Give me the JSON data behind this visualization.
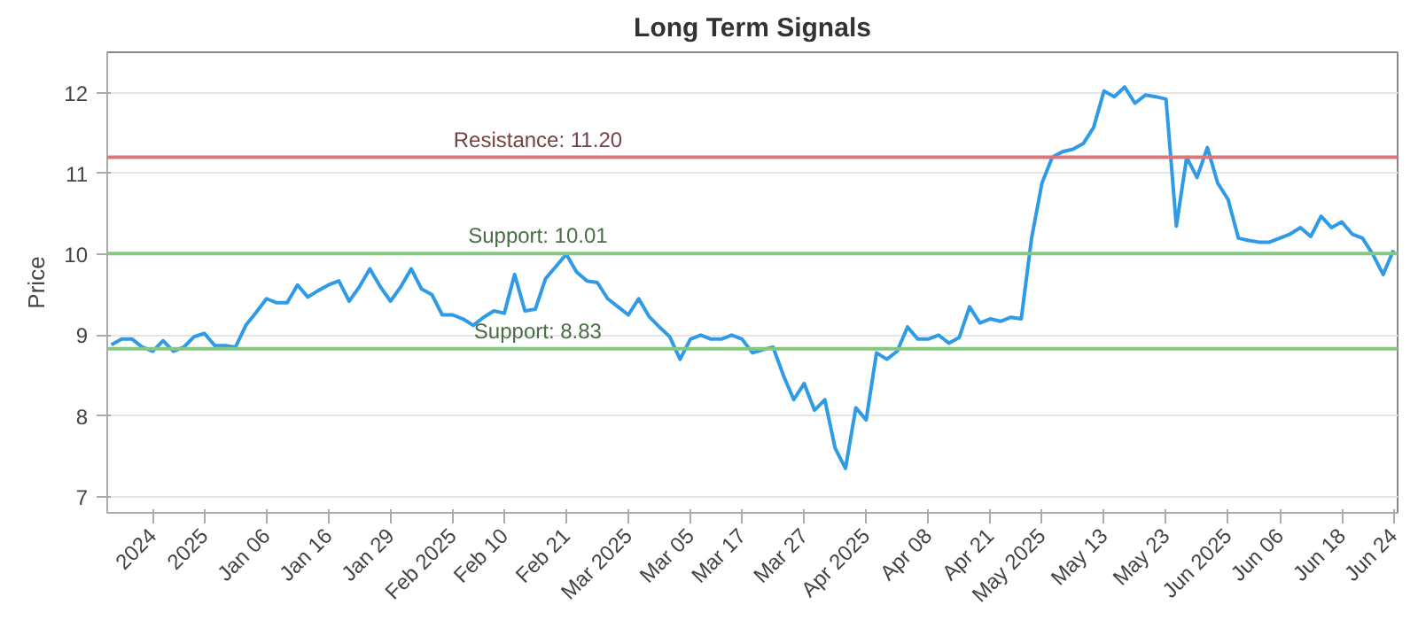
{
  "chart_data": {
    "type": "line",
    "title": "Long Term Signals",
    "ylabel": "Price",
    "categories": [
      null,
      null,
      null,
      null,
      "2024",
      null,
      null,
      null,
      null,
      "2025",
      null,
      null,
      null,
      null,
      null,
      "Jan 06",
      null,
      null,
      null,
      null,
      null,
      "Jan 16",
      null,
      null,
      null,
      null,
      null,
      "Jan 29",
      null,
      null,
      null,
      null,
      null,
      "Feb 2025",
      null,
      null,
      null,
      null,
      "Feb 10",
      null,
      null,
      null,
      null,
      null,
      "Feb 21",
      null,
      null,
      null,
      null,
      null,
      "Mar 2025",
      null,
      null,
      null,
      null,
      null,
      "Mar 05",
      null,
      null,
      null,
      null,
      "Mar 17",
      null,
      null,
      null,
      null,
      null,
      "Mar 27",
      null,
      null,
      null,
      null,
      null,
      "Apr 2025",
      null,
      null,
      null,
      null,
      null,
      "Apr 08",
      null,
      null,
      null,
      null,
      null,
      "Apr 21",
      null,
      null,
      null,
      null,
      "May 2025",
      null,
      null,
      null,
      null,
      null,
      "May 13",
      null,
      null,
      null,
      null,
      null,
      "May 23",
      null,
      null,
      null,
      null,
      null,
      "Jun 2025",
      null,
      null,
      null,
      null,
      "Jun 06",
      null,
      null,
      null,
      null,
      null,
      "Jun 18",
      null,
      null,
      null,
      null,
      "Jun 24"
    ],
    "series": [
      {
        "color": "#2f9ae6",
        "values": [
          8.88,
          8.95,
          8.95,
          8.85,
          8.8,
          8.93,
          8.8,
          8.85,
          8.98,
          9.02,
          8.87,
          8.87,
          8.85,
          9.12,
          9.28,
          9.45,
          9.4,
          9.4,
          9.62,
          9.47,
          9.55,
          9.62,
          9.67,
          9.42,
          9.6,
          9.82,
          9.6,
          9.42,
          9.6,
          9.82,
          9.57,
          9.5,
          9.25,
          9.25,
          9.2,
          9.12,
          9.22,
          9.3,
          9.27,
          9.75,
          9.3,
          9.32,
          9.7,
          9.85,
          10.0,
          9.78,
          9.67,
          9.65,
          9.45,
          9.35,
          9.25,
          9.45,
          9.23,
          9.1,
          8.98,
          8.7,
          8.95,
          9.0,
          8.95,
          8.95,
          9.0,
          8.95,
          8.78,
          8.82,
          8.85,
          8.5,
          8.2,
          8.4,
          8.07,
          8.2,
          7.6,
          7.35,
          8.1,
          7.95,
          8.78,
          8.7,
          8.8,
          9.1,
          8.95,
          8.95,
          9.0,
          8.9,
          8.97,
          9.35,
          9.15,
          9.2,
          9.17,
          9.22,
          9.2,
          10.2,
          10.88,
          11.2,
          11.27,
          11.3,
          11.37,
          11.57,
          12.02,
          11.95,
          12.07,
          11.87,
          11.97,
          11.95,
          11.92,
          10.35,
          11.2,
          10.95,
          11.32,
          10.88,
          10.68,
          10.2,
          10.17,
          10.15,
          10.15,
          10.2,
          10.25,
          10.33,
          10.22,
          10.47,
          10.33,
          10.4,
          10.25,
          10.2,
          10.0,
          9.75,
          10.05
        ]
      }
    ],
    "ylim": [
      6.8,
      12.5
    ],
    "yticks": [
      7,
      8,
      9,
      10,
      11,
      12
    ],
    "grid": "y",
    "marker": "none",
    "line_style": "solid",
    "ref_lines": [
      {
        "axis": "y",
        "value": 11.2,
        "label": "Resistance: 11.20",
        "color": "#d9777a"
      },
      {
        "axis": "y",
        "value": 10.01,
        "label": "Support: 10.01",
        "color": "#86c77f"
      },
      {
        "axis": "y",
        "value": 8.83,
        "label": "Support: 8.83",
        "color": "#86c77f"
      }
    ]
  }
}
